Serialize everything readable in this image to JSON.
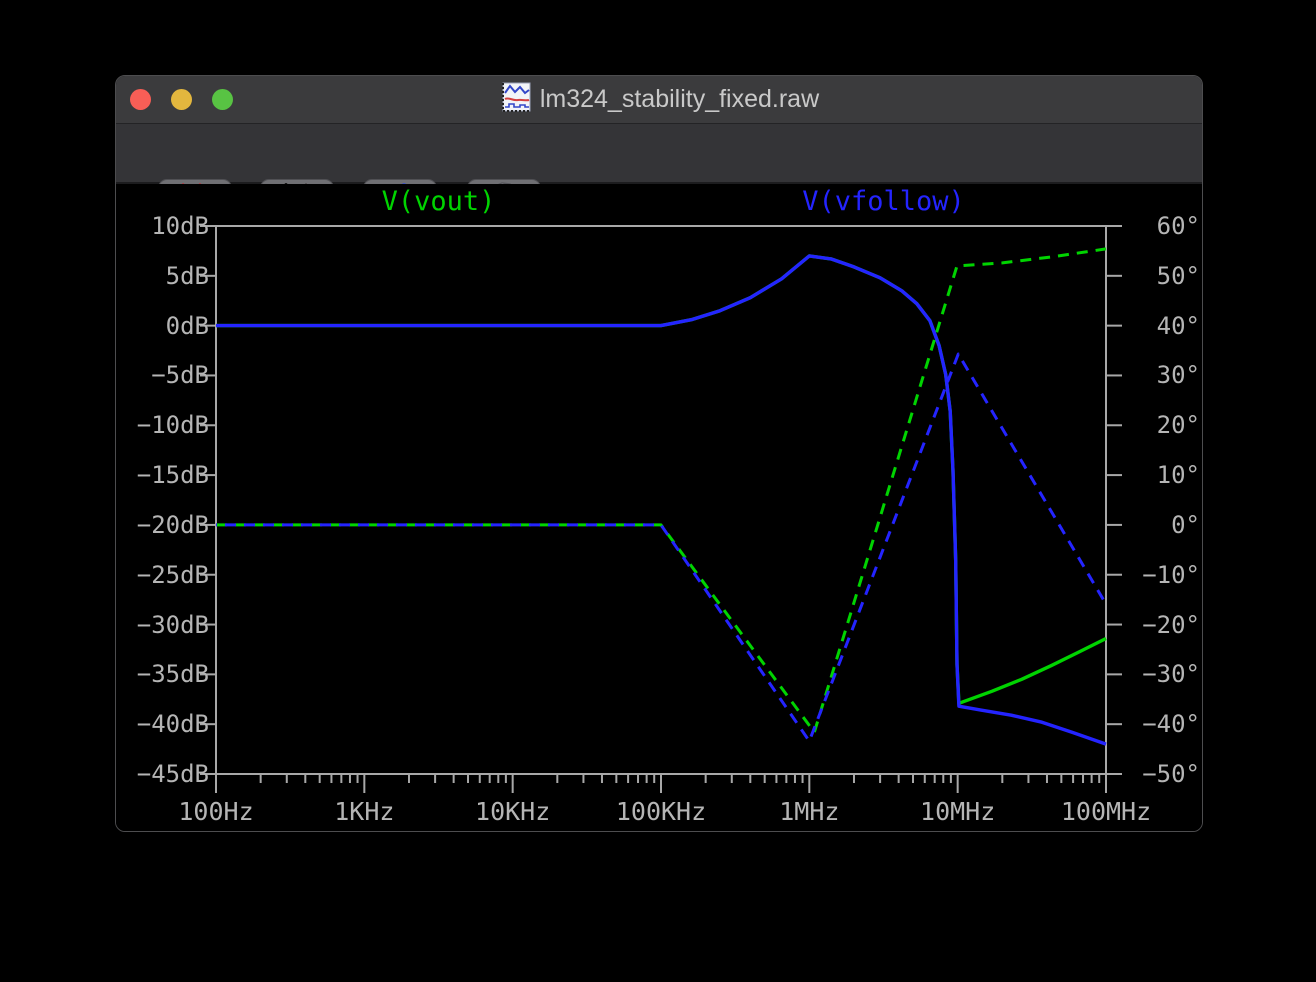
{
  "window": {
    "title": "lm324_stability_fixed.raw"
  },
  "titlebar": {
    "traffic_lights": [
      {
        "name": "close",
        "color": "#f85e56"
      },
      {
        "name": "minimize",
        "color": "#e3b73e"
      },
      {
        "name": "zoom",
        "color": "#58c343"
      }
    ]
  },
  "toolbar": {
    "buttons": [
      {
        "name": "zoom-back",
        "icon": "magnifier-x-icon"
      },
      {
        "name": "autorange-y-axis",
        "icon": "autorange-y-icon"
      },
      {
        "name": "plot-settings",
        "icon": "plot-settings-icon"
      },
      {
        "name": "control-panel",
        "icon": "hammer-icon"
      }
    ]
  },
  "legend": [
    {
      "label": "V(vout)",
      "color": "#00d400"
    },
    {
      "label": "V(vfollow)",
      "color": "#2424ff"
    }
  ],
  "axes": {
    "x_tick_labels": [
      "100Hz",
      "1KHz",
      "10KHz",
      "100KHz",
      "1MHz",
      "10MHz",
      "100MHz"
    ],
    "y_left_tick_labels": [
      "10dB",
      "5dB",
      "0dB",
      "−5dB",
      "−10dB",
      "−15dB",
      "−20dB",
      "−25dB",
      "−30dB",
      "−35dB",
      "−40dB",
      "−45dB"
    ],
    "y_right_tick_labels": [
      "60°",
      "50°",
      "40°",
      "30°",
      "20°",
      "10°",
      "0°",
      "−10°",
      "−20°",
      "−30°",
      "−40°",
      "−50°"
    ]
  },
  "colors": {
    "axis": "#a8a8a8",
    "label": "#b5b5b5",
    "plot_background": "#000000",
    "green_trace": "#00d400",
    "blue_trace": "#2424ff"
  },
  "chart_data": {
    "type": "line",
    "title": "",
    "x_axis": {
      "unit": "Hz",
      "scale": "log",
      "range": [
        100,
        100000000
      ],
      "tick_labels": [
        "100Hz",
        "1KHz",
        "10KHz",
        "100KHz",
        "1MHz",
        "10MHz",
        "100MHz"
      ]
    },
    "y_left_axis": {
      "unit": "dB",
      "range": [
        -45,
        10
      ],
      "tick_step": 5
    },
    "y_right_axis": {
      "unit": "degrees",
      "range": [
        -50,
        60
      ],
      "tick_step": 10
    },
    "grid": false,
    "legend_position": "top",
    "series": [
      {
        "name": "V(vout) magnitude",
        "color": "#00d400",
        "style": "solid",
        "axis": "left",
        "points": [
          [
            100,
            0
          ],
          [
            1000,
            0
          ],
          [
            10000,
            0
          ],
          [
            100000,
            0
          ],
          [
            160000,
            0.6
          ],
          [
            250000,
            1.5
          ],
          [
            400000,
            2.8
          ],
          [
            650000,
            4.7
          ],
          [
            1000000,
            7.0
          ],
          [
            1400000,
            6.7
          ],
          [
            2000000,
            5.9
          ],
          [
            3000000,
            4.8
          ],
          [
            4200000,
            3.5
          ],
          [
            5300000,
            2.2
          ],
          [
            6500000,
            0.5
          ],
          [
            7500000,
            -2.0
          ],
          [
            8300000,
            -4.9
          ],
          [
            8900000,
            -8.6
          ],
          [
            9300000,
            -14.6
          ],
          [
            9700000,
            -23.6
          ],
          [
            9900000,
            -34.0
          ],
          [
            10200000,
            -37.9
          ],
          [
            17000000,
            -36.7
          ],
          [
            27000000,
            -35.5
          ],
          [
            43000000,
            -34.1
          ],
          [
            67000000,
            -32.7
          ],
          [
            100000000,
            -31.4
          ]
        ]
      },
      {
        "name": "V(vout) phase",
        "color": "#00d400",
        "style": "dashed",
        "axis": "right",
        "points": [
          [
            100,
            0
          ],
          [
            100000,
            0
          ],
          [
            1080000,
            -41.6
          ],
          [
            9900000,
            52.0
          ],
          [
            20000000,
            52.6
          ],
          [
            43000000,
            53.8
          ],
          [
            100000000,
            55.4
          ]
        ]
      },
      {
        "name": "V(vfollow) magnitude",
        "color": "#2424ff",
        "style": "solid",
        "axis": "left",
        "points": [
          [
            100,
            0
          ],
          [
            1000,
            0
          ],
          [
            10000,
            0
          ],
          [
            100000,
            0
          ],
          [
            160000,
            0.6
          ],
          [
            250000,
            1.5
          ],
          [
            400000,
            2.8
          ],
          [
            650000,
            4.7
          ],
          [
            1000000,
            7.0
          ],
          [
            1400000,
            6.7
          ],
          [
            2000000,
            5.9
          ],
          [
            3000000,
            4.8
          ],
          [
            4200000,
            3.5
          ],
          [
            5300000,
            2.2
          ],
          [
            6500000,
            0.5
          ],
          [
            7500000,
            -2.0
          ],
          [
            8300000,
            -4.9
          ],
          [
            8900000,
            -8.6
          ],
          [
            9300000,
            -14.6
          ],
          [
            9700000,
            -23.6
          ],
          [
            9900000,
            -34.0
          ],
          [
            10200000,
            -38.2
          ],
          [
            14500000,
            -38.6
          ],
          [
            23000000,
            -39.1
          ],
          [
            37000000,
            -39.8
          ],
          [
            59000000,
            -40.8
          ],
          [
            100000000,
            -42.0
          ]
        ]
      },
      {
        "name": "V(vfollow) phase",
        "color": "#2424ff",
        "style": "dashed",
        "axis": "right",
        "points": [
          [
            100,
            0
          ],
          [
            100000,
            0
          ],
          [
            1000000,
            -43.4
          ],
          [
            10100000,
            34.3
          ],
          [
            100000000,
            -15.9
          ]
        ]
      }
    ]
  }
}
